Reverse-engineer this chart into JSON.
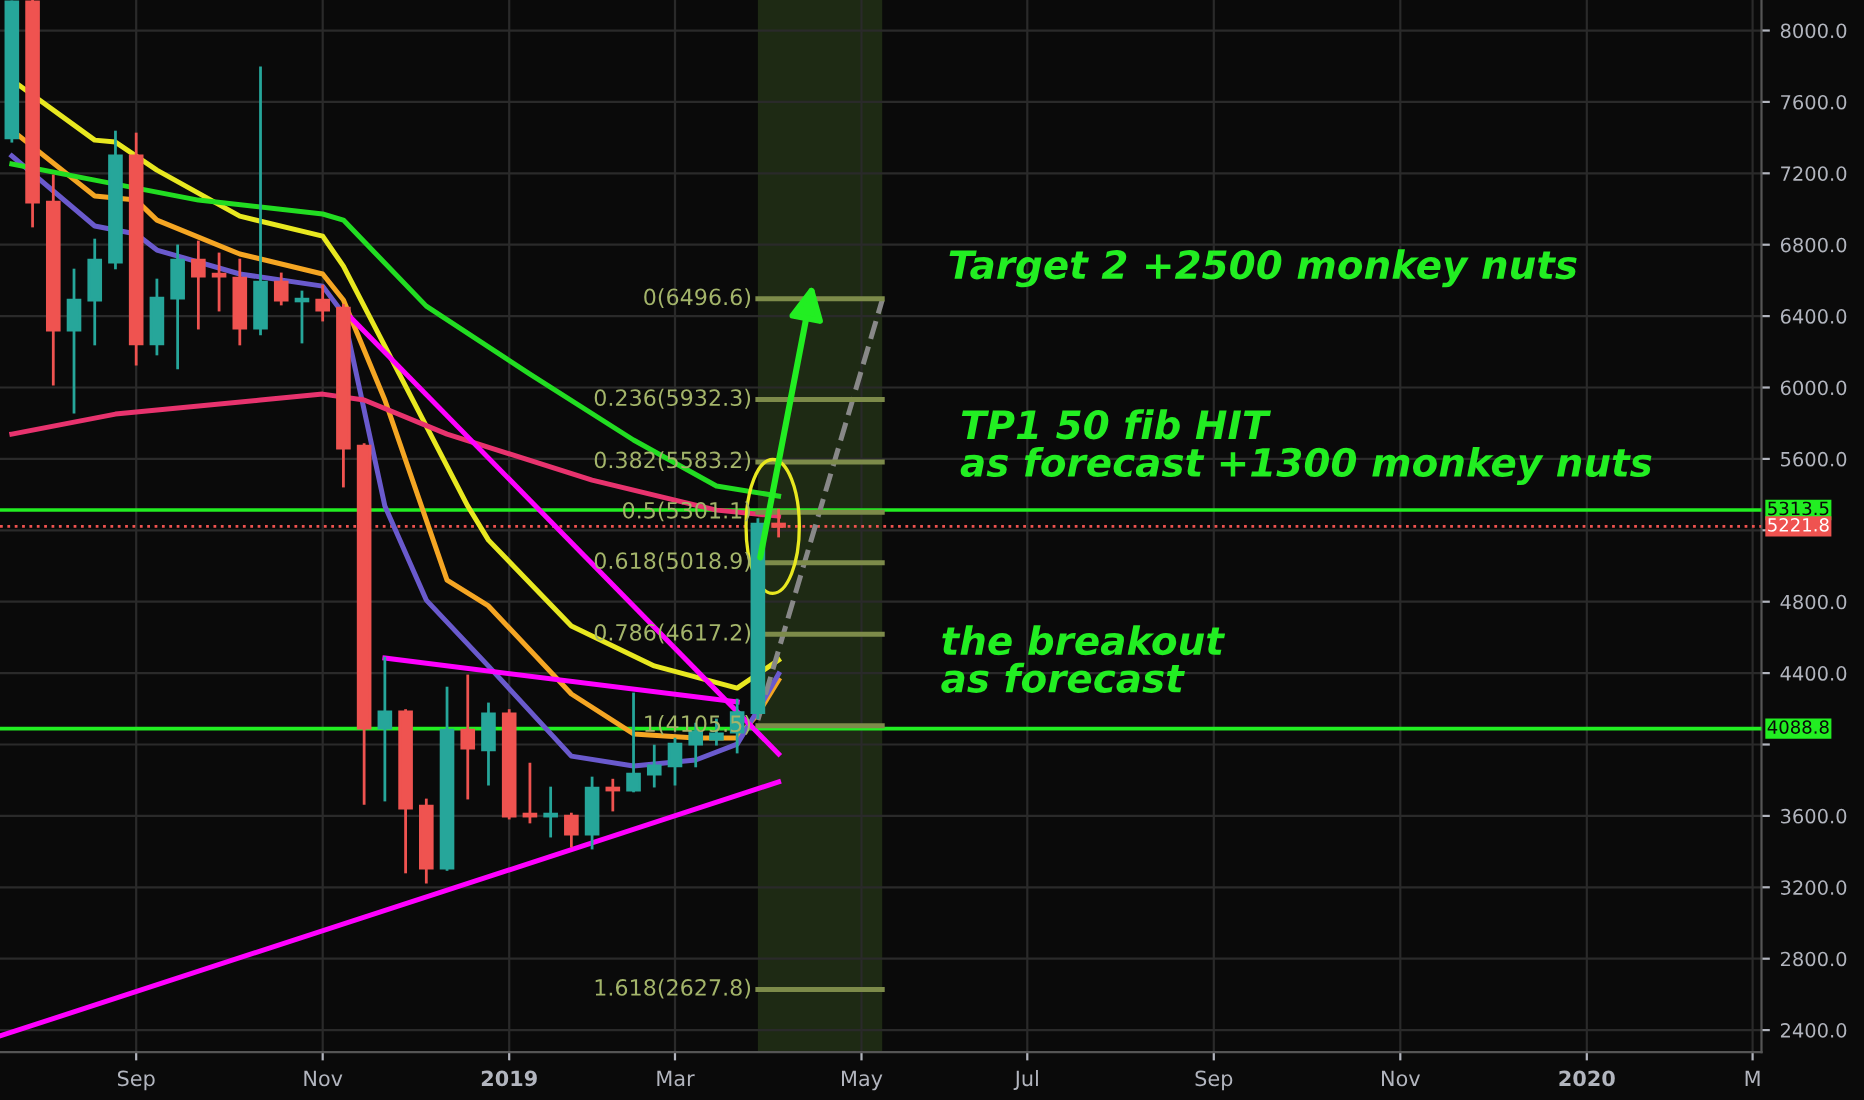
{
  "chart_data": {
    "type": "candlestick",
    "x": [
      "2018-07-23",
      "2018-07-30",
      "2018-08-06",
      "2018-08-13",
      "2018-08-20",
      "2018-08-27",
      "2018-09-03",
      "2018-09-10",
      "2018-09-17",
      "2018-09-24",
      "2018-10-01",
      "2018-10-08",
      "2018-10-15",
      "2018-10-22",
      "2018-10-29",
      "2018-11-05",
      "2018-11-12",
      "2018-11-19",
      "2018-11-26",
      "2018-12-03",
      "2018-12-10",
      "2018-12-17",
      "2018-12-24",
      "2018-12-31",
      "2019-01-07",
      "2019-01-14",
      "2019-01-21",
      "2019-01-28",
      "2019-02-04",
      "2019-02-11",
      "2019-02-18",
      "2019-02-25",
      "2019-03-04",
      "2019-03-11",
      "2019-03-18",
      "2019-03-25",
      "2019-04-01",
      "2019-04-08"
    ],
    "ohlc": [
      [
        7398,
        8160,
        7380,
        8160
      ],
      [
        8160,
        8165,
        6905,
        7039
      ],
      [
        7039,
        7185,
        6019,
        6322
      ],
      [
        6322,
        6658,
        5862,
        6490
      ],
      [
        6490,
        6826,
        6244,
        6714
      ],
      [
        6703,
        7431,
        6670,
        7297
      ],
      [
        7297,
        7420,
        6131,
        6244
      ],
      [
        6244,
        6602,
        6188,
        6501
      ],
      [
        6501,
        6793,
        6110,
        6714
      ],
      [
        6714,
        6815,
        6333,
        6624
      ],
      [
        6635,
        6748,
        6434,
        6624
      ],
      [
        6613,
        6714,
        6244,
        6333
      ],
      [
        6333,
        7790,
        6300,
        6591
      ],
      [
        6591,
        6636,
        6468,
        6490
      ],
      [
        6485,
        6535,
        6255,
        6495
      ],
      [
        6490,
        6568,
        6378,
        6434
      ],
      [
        6445,
        6460,
        5448,
        5661
      ],
      [
        5672,
        5680,
        3670,
        4092
      ],
      [
        4092,
        4484,
        3689,
        4182
      ],
      [
        4182,
        4190,
        3286,
        3644
      ],
      [
        3655,
        3689,
        3229,
        3308
      ],
      [
        3308,
        4316,
        3300,
        4081
      ],
      [
        4081,
        4384,
        3700,
        3980
      ],
      [
        3970,
        4227,
        3778,
        4171
      ],
      [
        4171,
        4190,
        3588,
        3599
      ],
      [
        3610,
        3890,
        3566,
        3599
      ],
      [
        3599,
        3756,
        3487,
        3610
      ],
      [
        3599,
        3610,
        3431,
        3498
      ],
      [
        3498,
        3812,
        3420,
        3756
      ],
      [
        3756,
        3800,
        3633,
        3745
      ],
      [
        3745,
        4283,
        3740,
        3834
      ],
      [
        3834,
        3991,
        3767,
        3880
      ],
      [
        3880,
        4030,
        3778,
        4002
      ],
      [
        4002,
        4114,
        3880,
        4070
      ],
      [
        4030,
        4137,
        4002,
        4060
      ],
      [
        4070,
        4249,
        3958,
        4178
      ],
      [
        4178,
        5260,
        4150,
        5235
      ],
      [
        5235,
        5313,
        5168,
        5221.8
      ]
    ],
    "colors": [
      "#26a69a",
      "#ef5350",
      "#ef5350",
      "#26a69a",
      "#26a69a",
      "#26a69a",
      "#ef5350",
      "#26a69a",
      "#26a69a",
      "#ef5350",
      "#ef5350",
      "#ef5350",
      "#26a69a",
      "#ef5350",
      "#26a69a",
      "#ef5350",
      "#ef5350",
      "#ef5350",
      "#26a69a",
      "#ef5350",
      "#ef5350",
      "#26a69a",
      "#ef5350",
      "#26a69a",
      "#ef5350",
      "#ef5350",
      "#26a69a",
      "#ef5350",
      "#26a69a",
      "#ef5350",
      "#26a69a",
      "#26a69a",
      "#26a69a",
      "#26a69a",
      "#26a69a",
      "#26a69a",
      "#26a69a",
      "#ef5350"
    ],
    "series": [
      {
        "type": "line",
        "color": "#e8e820",
        "x": [
          "2018-07-23",
          "2018-08-20",
          "2018-08-27",
          "2018-09-10",
          "2018-10-08",
          "2018-11-05",
          "2018-11-12",
          "2018-11-26",
          "2018-12-10",
          "2018-12-24",
          "2018-12-31",
          "2019-01-28",
          "2019-02-25",
          "2019-03-25",
          "2019-04-01",
          "2019-04-08"
        ],
        "values": [
          7723,
          7386,
          7375,
          7218,
          6960,
          6848,
          6680,
          6232,
          5784,
          5336,
          5145,
          4664,
          4440,
          4316,
          4395,
          4473
        ]
      },
      {
        "type": "line",
        "color": "#f5a623",
        "x": [
          "2018-07-23",
          "2018-08-20",
          "2018-09-03",
          "2018-09-10",
          "2018-10-08",
          "2018-11-05",
          "2018-11-12",
          "2018-11-26",
          "2018-12-10",
          "2018-12-17",
          "2018-12-31",
          "2019-01-28",
          "2019-02-18",
          "2019-03-11",
          "2019-03-25",
          "2019-04-01",
          "2019-04-08"
        ],
        "values": [
          7442,
          7073,
          7050,
          6938,
          6748,
          6636,
          6490,
          5930,
          5257,
          4921,
          4776,
          4283,
          4059,
          4036,
          4036,
          4171,
          4361
        ]
      },
      {
        "type": "line",
        "color": "#6a5acd",
        "x": [
          "2018-07-23",
          "2018-08-20",
          "2018-09-03",
          "2018-09-10",
          "2018-10-08",
          "2018-11-05",
          "2018-11-12",
          "2018-11-26",
          "2018-12-10",
          "2018-12-31",
          "2019-01-28",
          "2019-02-18",
          "2019-03-11",
          "2019-03-25",
          "2019-04-01",
          "2019-04-08"
        ],
        "values": [
          7297,
          6905,
          6860,
          6770,
          6636,
          6568,
          6412,
          5336,
          4809,
          4439,
          3935,
          3880,
          3913,
          4002,
          4193,
          4395
        ]
      },
      {
        "type": "line",
        "color": "#22dd22",
        "x": [
          "2018-07-23",
          "2018-08-20",
          "2018-09-24",
          "2018-11-05",
          "2018-11-12",
          "2018-12-10",
          "2019-01-14",
          "2019-02-18",
          "2019-03-18",
          "2019-04-08"
        ],
        "values": [
          7252,
          7162,
          7050,
          6972,
          6938,
          6456,
          6075,
          5706,
          5448,
          5392
        ]
      },
      {
        "type": "line",
        "color": "#e8336e",
        "x": [
          "2018-07-23",
          "2018-08-27",
          "2018-10-15",
          "2018-11-05",
          "2018-11-19",
          "2018-12-17",
          "2019-02-04",
          "2019-03-18",
          "2019-04-08"
        ],
        "values": [
          5739,
          5851,
          5930,
          5963,
          5930,
          5739,
          5481,
          5313,
          5280
        ]
      },
      {
        "type": "line",
        "color": "#ff00ff",
        "x": [
          "2018-11-12",
          "2019-04-08"
        ],
        "values": [
          6434,
          3947
        ]
      },
      {
        "type": "line",
        "color": "#ff00ff",
        "x": [
          "2018-11-26",
          "2019-03-25"
        ],
        "values": [
          4484,
          4238
        ]
      },
      {
        "type": "line",
        "color": "#ff00ff",
        "x": [
          "2018-07-19",
          "2019-04-08"
        ],
        "values": [
          2367,
          3790
        ]
      },
      {
        "type": "line",
        "color": "#888888",
        "line_style": "dashed",
        "x": [
          "2019-04-01",
          "2019-05-13"
        ],
        "values": [
          4137,
          6490
        ]
      },
      {
        "type": "line",
        "color": "#7d8b4a",
        "x": [
          "2019-04-01",
          "2019-05-13"
        ],
        "values": [
          6496.6,
          6496.6
        ]
      },
      {
        "type": "line",
        "color": "#7d8b4a",
        "x": [
          "2019-04-01",
          "2019-05-13"
        ],
        "values": [
          5932.3,
          5932.3
        ]
      },
      {
        "type": "line",
        "color": "#7d8b4a",
        "x": [
          "2019-04-01",
          "2019-05-13"
        ],
        "values": [
          5583.2,
          5583.2
        ]
      },
      {
        "type": "line",
        "color": "#7d8b4a",
        "x": [
          "2019-04-01",
          "2019-05-13"
        ],
        "values": [
          5301.1,
          5301.1
        ]
      },
      {
        "type": "line",
        "color": "#7d8b4a",
        "x": [
          "2019-04-01",
          "2019-05-13"
        ],
        "values": [
          5018.9,
          5018.9
        ]
      },
      {
        "type": "line",
        "color": "#7d8b4a",
        "x": [
          "2019-04-01",
          "2019-05-13"
        ],
        "values": [
          4617.2,
          4617.2
        ]
      },
      {
        "type": "line",
        "color": "#7d8b4a",
        "x": [
          "2019-04-01",
          "2019-05-13"
        ],
        "values": [
          4105.5,
          4105.5
        ]
      },
      {
        "type": "line",
        "color": "#7d8b4a",
        "x": [
          "2019-04-01",
          "2019-05-13"
        ],
        "values": [
          2627.8,
          2627.8
        ]
      }
    ],
    "ref_lines": [
      {
        "axis": "y",
        "value": 5313.5,
        "label": "5313.5",
        "color": "#22ee22",
        "line_style": "solid"
      },
      {
        "axis": "y",
        "value": 5221.8,
        "label": "5221.8",
        "color": "#ef5350",
        "line_style": "dotted"
      },
      {
        "axis": "y",
        "value": 4088.8,
        "label": "4088.8",
        "color": "#22ee22",
        "line_style": "solid"
      }
    ],
    "bands": [
      {
        "axis": "x",
        "from": "2019-04-01",
        "to": "2019-05-13",
        "color": "#1e2a14"
      }
    ],
    "annotations": [
      {
        "text": "0(6496.6)",
        "x": "2019-04-01",
        "y": 6496.6
      },
      {
        "text": "0.236(5932.3)",
        "x": "2019-04-01",
        "y": 5932.3
      },
      {
        "text": "0.382(5583.2)",
        "x": "2019-04-01",
        "y": 5583.2
      },
      {
        "text": "0.5(5301.1)",
        "x": "2019-04-01",
        "y": 5301.1
      },
      {
        "text": "0.618(5018.9)",
        "x": "2019-04-01",
        "y": 5018.9
      },
      {
        "text": "0.786(4617.2)",
        "x": "2019-04-01",
        "y": 4617.2
      },
      {
        "text": "1(4105.5)",
        "x": "2019-04-01",
        "y": 4105.5
      },
      {
        "text": "1.618(2627.8)",
        "x": "2019-04-01",
        "y": 2627.8
      },
      "Target 2 +2500 monkey nuts",
      "TP1 50 fib HIT\nas forecast +1300 monkey nuts",
      "the breakout\nas forecast"
    ],
    "xlim": [
      "2018-07-19",
      "2020-03-05"
    ],
    "ylim": [
      2277,
      8171
    ],
    "xticks": [
      {
        "value": "2018-09-03",
        "label": "Sep"
      },
      {
        "value": "2018-11-05",
        "label": "Nov"
      },
      {
        "value": "2019-01-07",
        "label": "2019"
      },
      {
        "value": "2019-03-04",
        "label": "Mar"
      },
      {
        "value": "2019-05-06",
        "label": "May"
      },
      {
        "value": "2019-07-01",
        "label": "Jul"
      },
      {
        "value": "2019-09-02",
        "label": "Sep"
      },
      {
        "value": "2019-11-04",
        "label": "Nov"
      },
      {
        "value": "2020-01-06",
        "label": "2020"
      },
      {
        "value": "2020-03-02",
        "label": "M"
      }
    ],
    "yticks": [
      {
        "value": 2400,
        "label": "2400.0"
      },
      {
        "value": 2800,
        "label": "2800.0"
      },
      {
        "value": 3200,
        "label": "3200.0"
      },
      {
        "value": 3600,
        "label": "3600.0"
      },
      {
        "value": 4000,
        "label": null
      },
      {
        "value": 4400,
        "label": "4400.0"
      },
      {
        "value": 4800,
        "label": "4800.0"
      },
      {
        "value": 5200,
        "label": null
      },
      {
        "value": 5600,
        "label": "5600.0"
      },
      {
        "value": 6000,
        "label": "6000.0"
      },
      {
        "value": 6400,
        "label": "6400.0"
      },
      {
        "value": 6800,
        "label": "6800.0"
      },
      {
        "value": 7200,
        "label": "7200.0"
      },
      {
        "value": 7600,
        "label": "7600.0"
      },
      {
        "value": 8000,
        "label": "8000.0"
      }
    ],
    "grid": true
  }
}
